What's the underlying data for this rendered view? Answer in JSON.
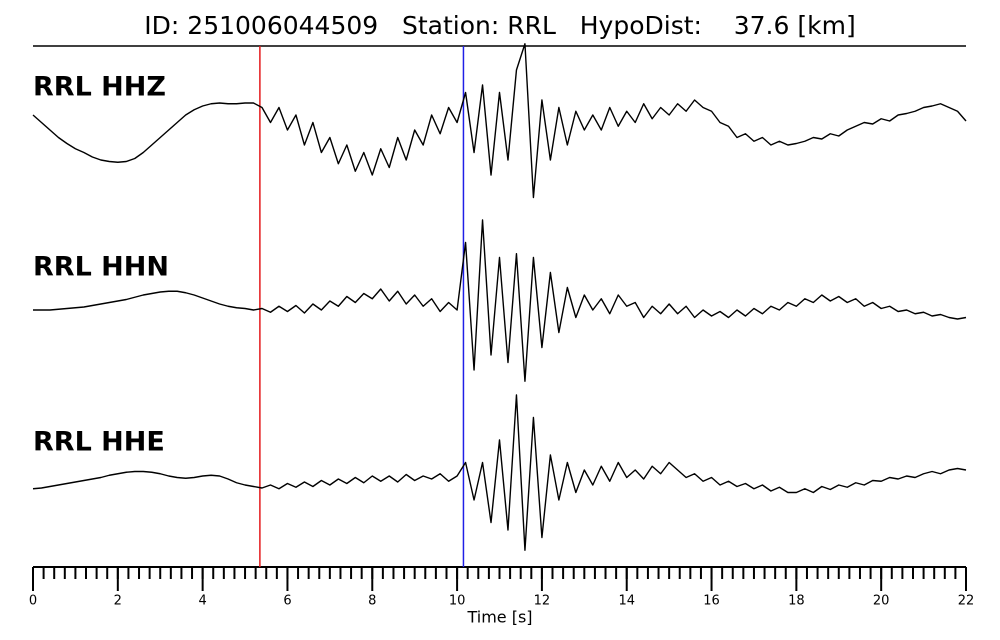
{
  "chart_data": {
    "type": "line",
    "title": "ID: 251006044509   Station: RRL   HypoDist:    37.6 [km]",
    "xlabel": "Time [s]",
    "xlim": [
      0,
      22
    ],
    "xticks": [
      0,
      2,
      4,
      6,
      8,
      10,
      12,
      14,
      16,
      18,
      20,
      22
    ],
    "xminorticks": [
      0,
      0.25,
      0.5,
      0.75,
      1,
      1.25,
      1.5,
      1.75,
      2,
      2.25,
      2.5,
      2.75,
      3,
      3.25,
      3.5,
      3.75,
      4,
      4.25,
      4.5,
      4.75,
      5,
      5.25,
      5.5,
      5.75,
      6,
      6.25,
      6.5,
      6.75,
      7,
      7.25,
      7.5,
      7.75,
      8,
      8.25,
      8.5,
      8.75,
      9,
      9.25,
      9.5,
      9.75,
      10,
      10.25,
      10.5,
      10.75,
      11,
      11.25,
      11.5,
      11.75,
      12,
      12.25,
      12.5,
      12.75,
      13,
      13.25,
      13.5,
      13.75,
      14,
      14.25,
      14.5,
      14.75,
      15,
      15.25,
      15.5,
      15.75,
      16,
      16.25,
      16.5,
      16.75,
      17,
      17.25,
      17.5,
      17.75,
      18,
      18.25,
      18.5,
      18.75,
      19,
      19.25,
      19.5,
      19.75,
      20,
      20.25,
      20.5,
      20.75,
      21,
      21.25,
      21.5,
      21.75,
      22
    ],
    "ylim": [
      -1,
      1
    ],
    "label_color": "#4a9a05",
    "markers": [
      {
        "x": 5.35,
        "color": "#e41a1c"
      },
      {
        "x": 10.15,
        "color": "#1f1fe6"
      }
    ],
    "x": [
      0,
      0.2,
      0.4,
      0.6,
      0.8,
      1,
      1.2,
      1.4,
      1.6,
      1.8,
      2,
      2.2,
      2.4,
      2.6,
      2.8,
      3,
      3.2,
      3.4,
      3.6,
      3.8,
      4,
      4.2,
      4.4,
      4.6,
      4.8,
      5,
      5.2,
      5.4,
      5.6,
      5.8,
      6,
      6.2,
      6.4,
      6.6,
      6.8,
      7,
      7.2,
      7.4,
      7.6,
      7.8,
      8,
      8.2,
      8.4,
      8.6,
      8.8,
      9,
      9.2,
      9.4,
      9.6,
      9.8,
      10,
      10.2,
      10.4,
      10.6,
      10.8,
      11,
      11.2,
      11.4,
      11.6,
      11.8,
      12,
      12.2,
      12.4,
      12.6,
      12.8,
      13,
      13.2,
      13.4,
      13.6,
      13.8,
      14,
      14.2,
      14.4,
      14.6,
      14.8,
      15,
      15.2,
      15.4,
      15.6,
      15.8,
      16,
      16.2,
      16.4,
      16.6,
      16.8,
      17,
      17.2,
      17.4,
      17.6,
      17.8,
      18,
      18.2,
      18.4,
      18.6,
      18.8,
      19,
      19.2,
      19.4,
      19.6,
      19.8,
      20,
      20.2,
      20.4,
      20.6,
      20.8,
      21,
      21.2,
      21.4,
      21.6,
      21.8,
      22
    ],
    "series": [
      {
        "name": "RRL HHZ",
        "color": "#000000",
        "values": [
          0.2,
          0.1,
          0.0,
          -0.1,
          -0.18,
          -0.25,
          -0.3,
          -0.36,
          -0.4,
          -0.42,
          -0.43,
          -0.42,
          -0.38,
          -0.3,
          -0.2,
          -0.1,
          0.0,
          0.1,
          0.2,
          0.27,
          0.32,
          0.35,
          0.36,
          0.35,
          0.35,
          0.36,
          0.36,
          0.3,
          0.1,
          0.3,
          0.0,
          0.2,
          -0.2,
          0.1,
          -0.3,
          -0.1,
          -0.45,
          -0.2,
          -0.55,
          -0.3,
          -0.6,
          -0.25,
          -0.5,
          -0.1,
          -0.4,
          0.0,
          -0.2,
          0.2,
          -0.05,
          0.3,
          0.1,
          0.5,
          -0.3,
          0.6,
          -0.6,
          0.5,
          -0.4,
          0.8,
          1.15,
          -0.9,
          0.4,
          -0.4,
          0.3,
          -0.2,
          0.25,
          0.0,
          0.2,
          0.0,
          0.3,
          0.05,
          0.25,
          0.1,
          0.35,
          0.15,
          0.3,
          0.2,
          0.35,
          0.25,
          0.4,
          0.3,
          0.25,
          0.1,
          0.05,
          -0.1,
          -0.05,
          -0.15,
          -0.1,
          -0.2,
          -0.15,
          -0.2,
          -0.18,
          -0.15,
          -0.1,
          -0.12,
          -0.05,
          -0.08,
          0.0,
          0.05,
          0.1,
          0.08,
          0.15,
          0.12,
          0.2,
          0.22,
          0.25,
          0.3,
          0.32,
          0.35,
          0.3,
          0.25,
          0.12
        ]
      },
      {
        "name": "RRL HHN",
        "color": "#000000",
        "values": [
          0.0,
          0.0,
          0.0,
          0.01,
          0.02,
          0.03,
          0.04,
          0.06,
          0.08,
          0.1,
          0.12,
          0.14,
          0.17,
          0.2,
          0.22,
          0.24,
          0.25,
          0.25,
          0.23,
          0.2,
          0.16,
          0.12,
          0.08,
          0.05,
          0.03,
          0.02,
          0.0,
          0.02,
          -0.03,
          0.05,
          -0.02,
          0.06,
          -0.04,
          0.08,
          0.0,
          0.12,
          0.05,
          0.18,
          0.1,
          0.22,
          0.15,
          0.28,
          0.12,
          0.25,
          0.08,
          0.2,
          0.05,
          0.15,
          -0.02,
          0.1,
          0.0,
          0.9,
          -0.8,
          1.2,
          -0.6,
          0.7,
          -0.7,
          0.75,
          -0.95,
          0.7,
          -0.5,
          0.5,
          -0.3,
          0.3,
          -0.1,
          0.2,
          0.0,
          0.15,
          -0.05,
          0.2,
          0.05,
          0.1,
          -0.1,
          0.05,
          -0.05,
          0.08,
          -0.05,
          0.05,
          -0.1,
          0.0,
          -0.08,
          -0.02,
          -0.1,
          0.0,
          -0.08,
          0.02,
          -0.05,
          0.05,
          0.0,
          0.1,
          0.05,
          0.15,
          0.1,
          0.2,
          0.12,
          0.18,
          0.1,
          0.15,
          0.05,
          0.1,
          0.02,
          0.05,
          -0.02,
          0.0,
          -0.05,
          -0.03,
          -0.08,
          -0.06,
          -0.1,
          -0.12,
          -0.1
        ]
      },
      {
        "name": "RRL HHE",
        "color": "#000000",
        "values": [
          -0.05,
          -0.04,
          -0.02,
          0.0,
          0.02,
          0.04,
          0.06,
          0.08,
          0.1,
          0.13,
          0.15,
          0.17,
          0.18,
          0.18,
          0.17,
          0.15,
          0.12,
          0.1,
          0.09,
          0.1,
          0.12,
          0.13,
          0.12,
          0.08,
          0.03,
          0.0,
          -0.02,
          -0.04,
          0.0,
          -0.05,
          0.02,
          -0.03,
          0.04,
          -0.02,
          0.06,
          0.0,
          0.08,
          0.02,
          0.1,
          0.03,
          0.12,
          0.05,
          0.12,
          0.04,
          0.14,
          0.06,
          0.12,
          0.08,
          0.15,
          0.05,
          0.12,
          0.3,
          -0.2,
          0.3,
          -0.5,
          0.6,
          -0.6,
          1.2,
          -0.87,
          0.9,
          -0.7,
          0.4,
          -0.2,
          0.3,
          -0.1,
          0.2,
          0.0,
          0.25,
          0.05,
          0.3,
          0.1,
          0.2,
          0.08,
          0.25,
          0.15,
          0.3,
          0.2,
          0.1,
          0.15,
          0.05,
          0.1,
          0.0,
          0.05,
          -0.02,
          0.02,
          -0.05,
          0.0,
          -0.08,
          -0.03,
          -0.1,
          -0.1,
          -0.05,
          -0.1,
          -0.02,
          -0.06,
          0.0,
          -0.03,
          0.03,
          0.0,
          0.06,
          0.05,
          0.1,
          0.08,
          0.12,
          0.1,
          0.15,
          0.18,
          0.15,
          0.2,
          0.22,
          0.2
        ]
      }
    ]
  }
}
